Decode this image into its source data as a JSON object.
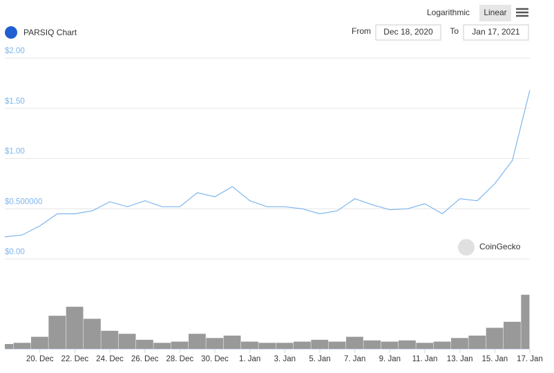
{
  "toolbar": {
    "scales": [
      "Logarithmic",
      "Linear"
    ],
    "from_label": "From",
    "from": "Dec 18, 2020",
    "to_label": "To",
    "to": "Jan 17, 2021"
  },
  "chart_data": [
    {
      "type": "line",
      "title": "PARSIQ Chart",
      "annotation": "CoinGecko",
      "color": "#7cb5ec",
      "x": [
        "2020-12-18",
        "2020-12-19",
        "2020-12-20",
        "2020-12-21",
        "2020-12-22",
        "2020-12-23",
        "2020-12-24",
        "2020-12-25",
        "2020-12-26",
        "2020-12-27",
        "2020-12-28",
        "2020-12-29",
        "2020-12-30",
        "2020-12-31",
        "2021-01-01",
        "2021-01-02",
        "2021-01-03",
        "2021-01-04",
        "2021-01-05",
        "2021-01-06",
        "2021-01-07",
        "2021-01-08",
        "2021-01-09",
        "2021-01-10",
        "2021-01-11",
        "2021-01-12",
        "2021-01-13",
        "2021-01-14",
        "2021-01-15",
        "2021-01-16",
        "2021-01-17"
      ],
      "values": [
        0.22,
        0.24,
        0.33,
        0.45,
        0.45,
        0.48,
        0.57,
        0.52,
        0.58,
        0.52,
        0.52,
        0.66,
        0.62,
        0.72,
        0.58,
        0.52,
        0.52,
        0.5,
        0.45,
        0.48,
        0.6,
        0.54,
        0.49,
        0.5,
        0.55,
        0.45,
        0.6,
        0.58,
        0.75,
        0.98,
        1.68
      ],
      "xlim": [
        "2020-12-18",
        "2021-01-17"
      ],
      "xticks": [
        {
          "value": "2020-12-20",
          "label": "20. Dec"
        },
        {
          "value": "2020-12-22",
          "label": "22. Dec"
        },
        {
          "value": "2020-12-24",
          "label": "24. Dec"
        },
        {
          "value": "2020-12-26",
          "label": "26. Dec"
        },
        {
          "value": "2020-12-28",
          "label": "28. Dec"
        },
        {
          "value": "2020-12-30",
          "label": "30. Dec"
        },
        {
          "value": "2021-01-01",
          "label": "1. Jan"
        },
        {
          "value": "2021-01-03",
          "label": "3. Jan"
        },
        {
          "value": "2021-01-05",
          "label": "5. Jan"
        },
        {
          "value": "2021-01-07",
          "label": "7. Jan"
        },
        {
          "value": "2021-01-09",
          "label": "9. Jan"
        },
        {
          "value": "2021-01-11",
          "label": "11. Jan"
        },
        {
          "value": "2021-01-13",
          "label": "13. Jan"
        },
        {
          "value": "2021-01-15",
          "label": "15. Jan"
        },
        {
          "value": "2021-01-17",
          "label": "17. Jan"
        }
      ],
      "ylim": [
        0,
        2
      ],
      "yticks": [
        {
          "value": 0,
          "label": "$0.00"
        },
        {
          "value": 0.5,
          "label": "$0.500000"
        },
        {
          "value": 1,
          "label": "$1.00"
        },
        {
          "value": 1.5,
          "label": "$1.50"
        },
        {
          "value": 2,
          "label": "$2.00"
        }
      ],
      "grid": true
    },
    {
      "type": "bar",
      "color": "#999999",
      "values": [
        8,
        10,
        20,
        55,
        70,
        50,
        30,
        25,
        15,
        10,
        12,
        25,
        18,
        22,
        12,
        10,
        10,
        12,
        15,
        12,
        20,
        14,
        12,
        14,
        10,
        12,
        18,
        22,
        35,
        45,
        90
      ],
      "ylim": [
        0,
        100
      ]
    }
  ]
}
